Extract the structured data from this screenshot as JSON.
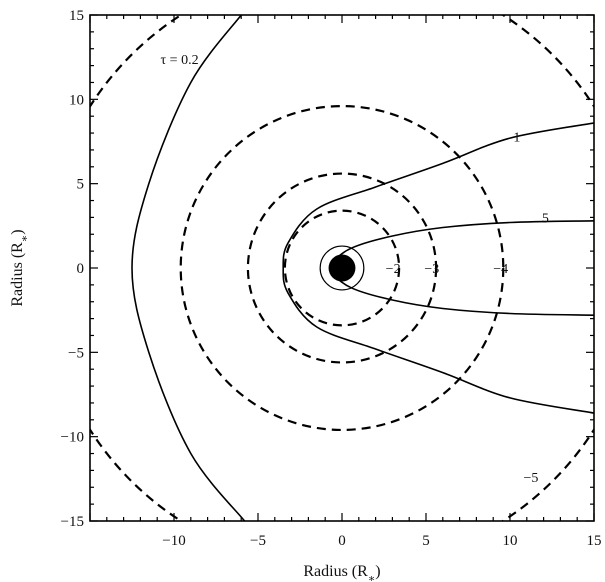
{
  "chart_data": {
    "type": "contour",
    "title": "",
    "xlabel": "Radius (R*)",
    "ylabel": "Radius (R*)",
    "xlim": [
      -15,
      15
    ],
    "ylim": [
      -15,
      15
    ],
    "xticks": [
      -10,
      -5,
      0,
      5,
      10,
      15
    ],
    "yticks": [
      -15,
      -10,
      -5,
      0,
      5,
      10,
      15
    ],
    "grid": false,
    "central_object": {
      "x": 0,
      "y": 0,
      "filled_radius": 0.8,
      "ring_radius": 1.3
    },
    "optical_depth_contours": [
      {
        "label": "τ = 0.2",
        "style": "solid",
        "points": [
          [
            -6,
            15
          ],
          [
            -9,
            11
          ],
          [
            -11.5,
            5
          ],
          [
            -12.5,
            0
          ],
          [
            -11.5,
            -5
          ],
          [
            -9,
            -11
          ],
          [
            -5.8,
            -15
          ]
        ]
      },
      {
        "label": "1",
        "style": "solid",
        "points": [
          [
            15,
            8.6
          ],
          [
            10,
            7.7
          ],
          [
            6,
            6.2
          ],
          [
            2,
            4.8
          ],
          [
            -1.5,
            3.5
          ],
          [
            -3.2,
            1.5
          ],
          [
            -3.5,
            0
          ],
          [
            -3.2,
            -1.5
          ],
          [
            -1.5,
            -3.5
          ],
          [
            2,
            -4.8
          ],
          [
            6,
            -6.2
          ],
          [
            10,
            -7.7
          ],
          [
            15,
            -8.6
          ]
        ]
      },
      {
        "label": "5",
        "style": "solid",
        "points": [
          [
            15,
            2.8
          ],
          [
            10,
            2.7
          ],
          [
            6,
            2.4
          ],
          [
            3,
            1.9
          ],
          [
            0.6,
            1.2
          ],
          [
            -0.5,
            0.4
          ],
          [
            -0.6,
            0
          ],
          [
            -0.5,
            -0.4
          ],
          [
            0.6,
            -1.2
          ],
          [
            3,
            -1.9
          ],
          [
            6,
            -2.4
          ],
          [
            10,
            -2.7
          ],
          [
            15,
            -2.8
          ]
        ]
      }
    ],
    "velocity_contours": [
      {
        "label": "-2",
        "style": "dashed",
        "radius": 3.4
      },
      {
        "label": "-3",
        "style": "dashed",
        "radius": 5.6
      },
      {
        "label": "-4",
        "style": "dashed",
        "radius": 9.6
      },
      {
        "label": "-5",
        "style": "dashed",
        "radius": 17.8
      }
    ]
  }
}
